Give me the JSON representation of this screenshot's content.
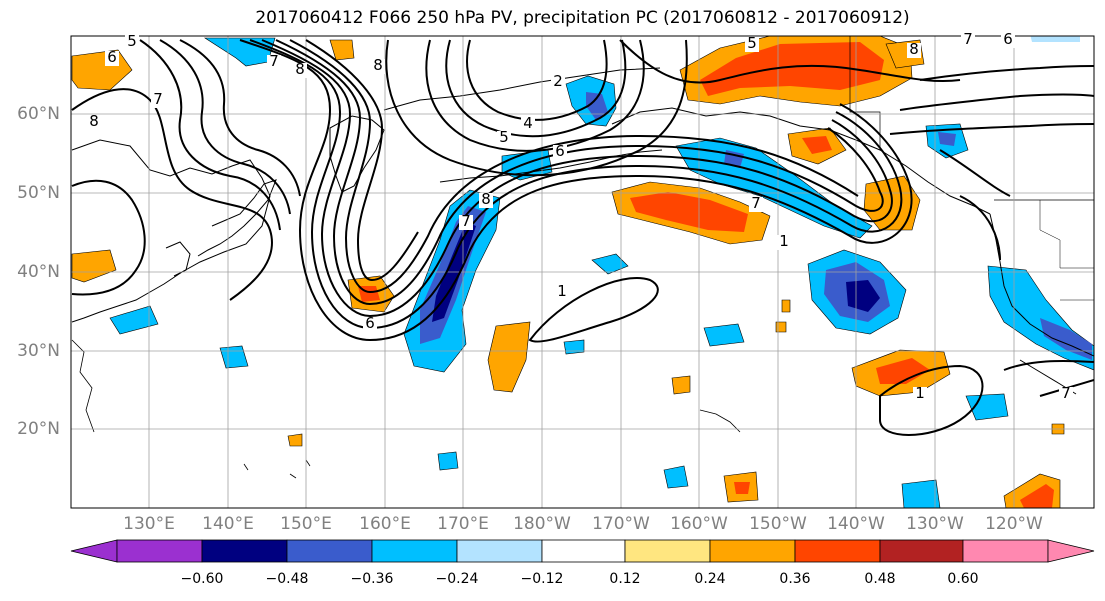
{
  "title": "2017060412 F066 250 hPa PV, precipitation PC (2017060812 - 2017060912)",
  "map": {
    "lat_labels": [
      "60°N",
      "50°N",
      "40°N",
      "30°N",
      "20°N"
    ],
    "lon_labels": [
      "130°E",
      "140°E",
      "150°E",
      "160°E",
      "170°E",
      "180°W",
      "170°W",
      "160°W",
      "150°W",
      "140°W",
      "130°W",
      "120°W"
    ],
    "contour_labels": [
      "5",
      "6",
      "7",
      "8",
      "8",
      "8",
      "7",
      "2",
      "4",
      "5",
      "6",
      "6",
      "7",
      "8",
      "7",
      "1",
      "1",
      "1",
      "7",
      "5",
      "8",
      "7",
      "6"
    ],
    "colors": {
      "land": "#000000",
      "grid": "#a0a0a0",
      "contour": "#000000"
    }
  },
  "colorbar": {
    "labels": [
      "−0.60",
      "−0.48",
      "−0.36",
      "−0.24",
      "−0.12",
      "0.12",
      "0.24",
      "0.36",
      "0.48",
      "0.60"
    ],
    "colors": [
      "#9b30d0",
      "#000080",
      "#3a5ccc",
      "#00bfff",
      "#b3e3ff",
      "#ffffff",
      "#ffe680",
      "#ffa500",
      "#ff4500",
      "#b22222",
      "#ff88b0"
    ]
  }
}
